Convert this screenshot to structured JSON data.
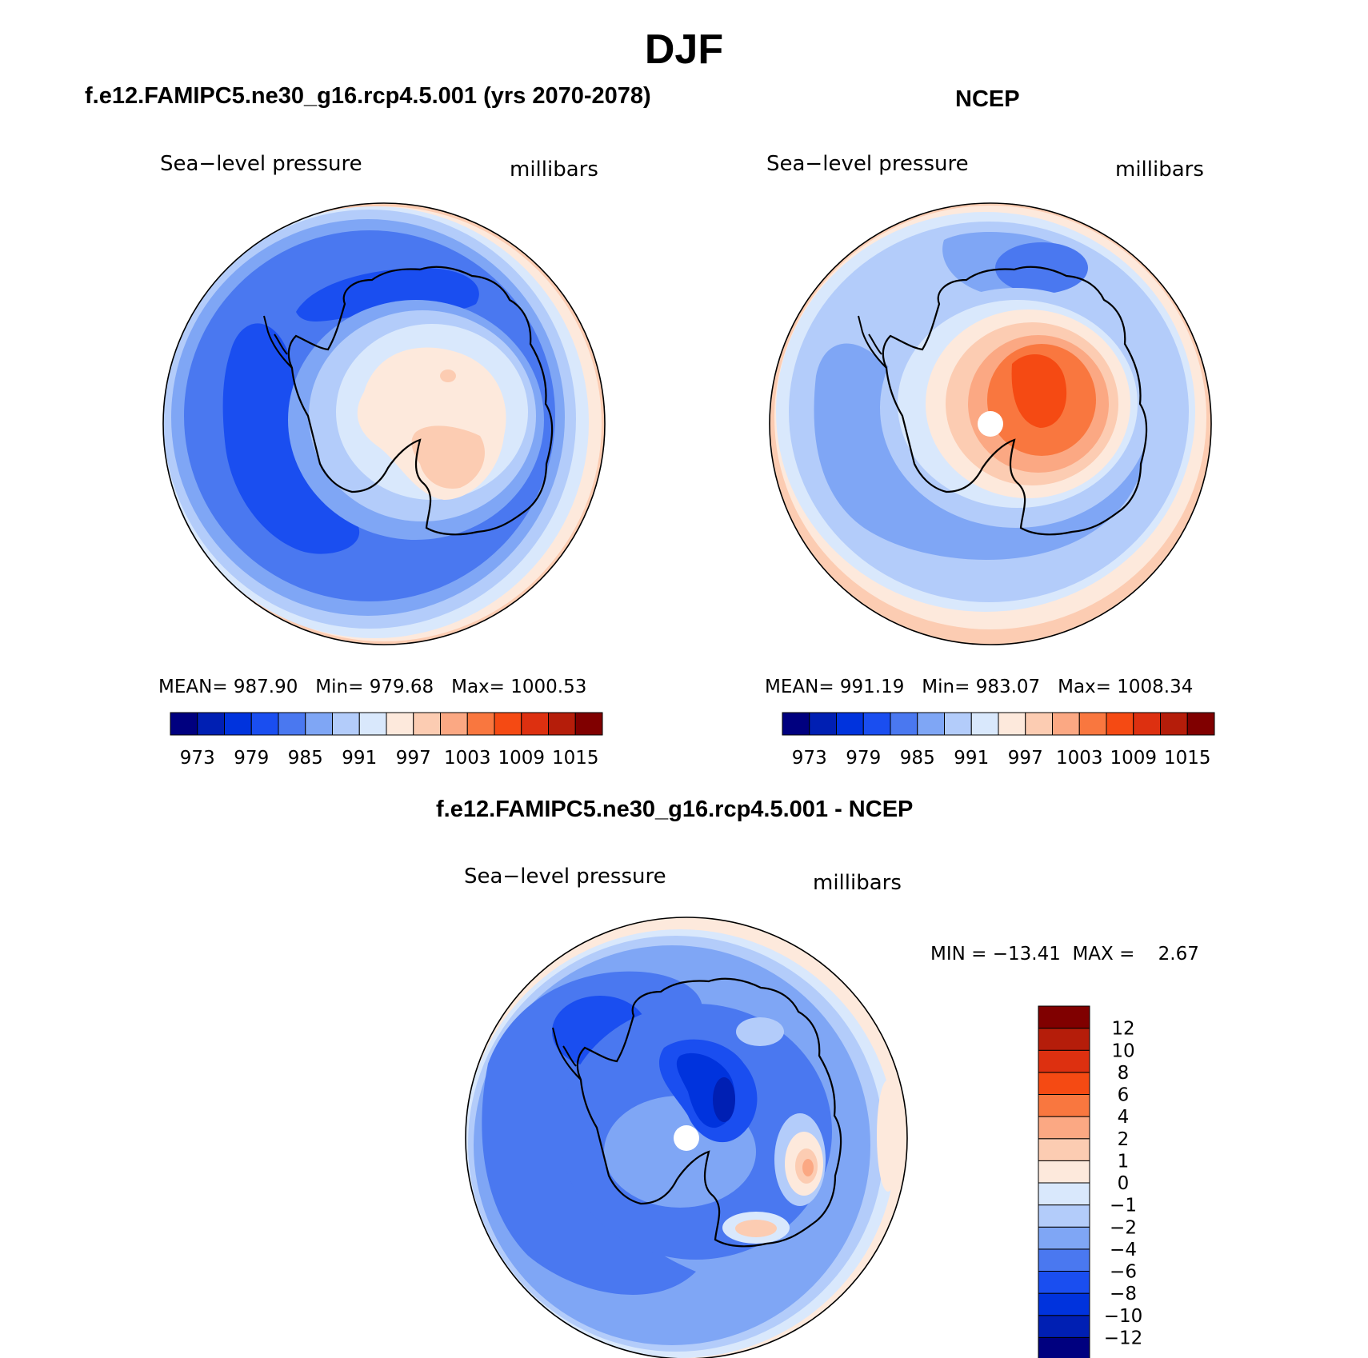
{
  "figure": {
    "title": "DJF",
    "colors": {
      "abs": [
        "#00007f",
        "#001fb3",
        "#0033dd",
        "#1a4ef0",
        "#4a78f0",
        "#7fa6f5",
        "#b3ccfa",
        "#d9e8fc",
        "#fde9dc",
        "#fcccb2",
        "#fba883",
        "#f9773f",
        "#f54a13",
        "#dd3010",
        "#b51d0a",
        "#800000"
      ],
      "diff": [
        "#00007f",
        "#001fb3",
        "#0033dd",
        "#1a4ef0",
        "#4a78f0",
        "#7fa6f5",
        "#b3ccfa",
        "#d9e8fc",
        "#fde9dc",
        "#fcccb2",
        "#fba883",
        "#f9773f",
        "#f54a13",
        "#dd3010",
        "#b51d0a",
        "#800000"
      ]
    }
  },
  "panels": [
    {
      "id": "model",
      "title": "f.e12.FAMIPC5.ne30_g16.rcp4.5.001 (yrs 2070-2078)",
      "variable": "Sea−level pressure",
      "units": "millibars",
      "stats": "MEAN= 987.90   Min= 979.68   Max= 1000.53",
      "labelbar_ticks": [
        "973",
        "979",
        "985",
        "991",
        "997",
        "1003",
        "1009",
        "1015"
      ]
    },
    {
      "id": "obs",
      "title": "NCEP",
      "variable": "Sea−level pressure",
      "units": "millibars",
      "stats": "MEAN= 991.19   Min= 983.07   Max= 1008.34",
      "labelbar_ticks": [
        "973",
        "979",
        "985",
        "991",
        "997",
        "1003",
        "1009",
        "1015"
      ]
    },
    {
      "id": "diff",
      "title": "f.e12.FAMIPC5.ne30_g16.rcp4.5.001 - NCEP",
      "variable": "Sea−level pressure",
      "units": "millibars",
      "stats": "MIN = −13.41  MAX =    2.67",
      "labelbar_ticks": [
        "12",
        "10",
        "8",
        "6",
        "4",
        "2",
        "1",
        "0",
        "−1",
        "−2",
        "−4",
        "−6",
        "−8",
        "−10",
        "−12"
      ]
    }
  ]
}
